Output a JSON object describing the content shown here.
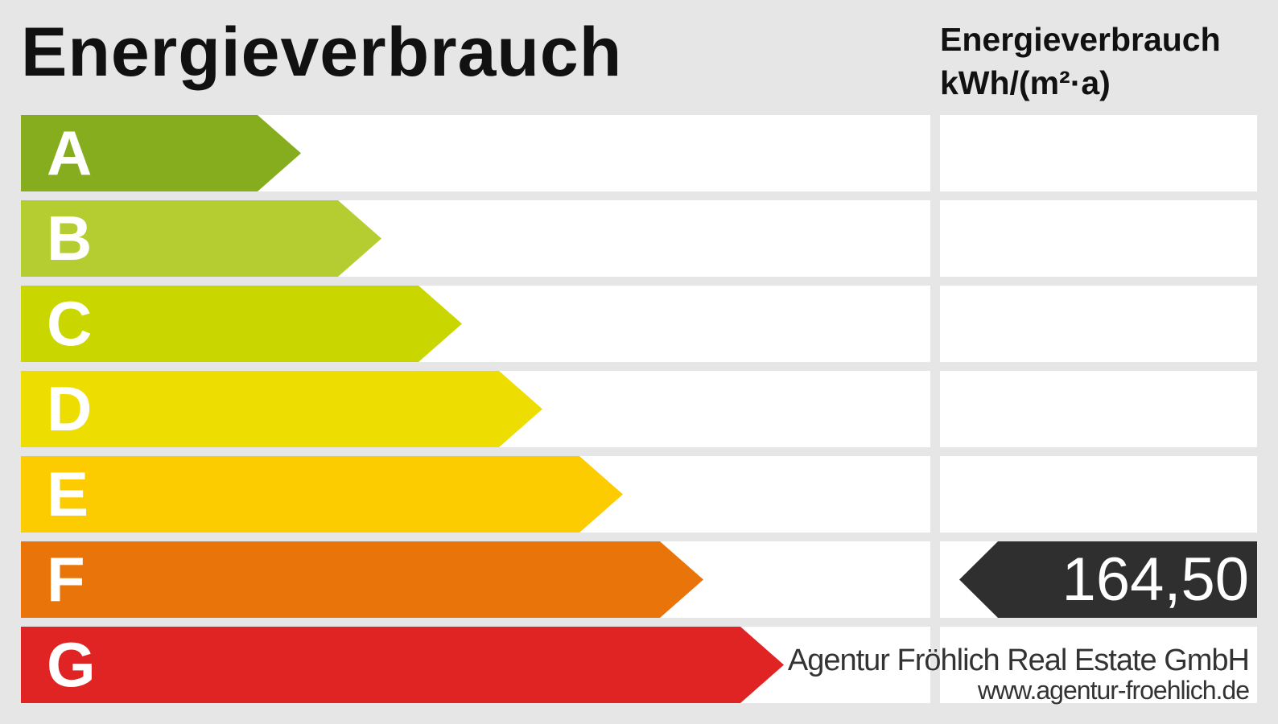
{
  "title": "Energieverbrauch",
  "unit_header": {
    "line1": "Energieverbrauch",
    "line2": "kWh/(m²·a)"
  },
  "classes": [
    {
      "letter": "A",
      "color": "#86ad1e"
    },
    {
      "letter": "B",
      "color": "#b6cd32"
    },
    {
      "letter": "C",
      "color": "#cad600"
    },
    {
      "letter": "D",
      "color": "#eedd00"
    },
    {
      "letter": "E",
      "color": "#fccb00"
    },
    {
      "letter": "F",
      "color": "#e8740a"
    },
    {
      "letter": "G",
      "color": "#e02323"
    }
  ],
  "rating": {
    "value": "164,50",
    "class": "F",
    "marker_color": "#2f2f2f"
  },
  "credit": {
    "name": "Agentur Fröhlich Real Estate GmbH",
    "url": "www.agentur-froehlich.de"
  }
}
